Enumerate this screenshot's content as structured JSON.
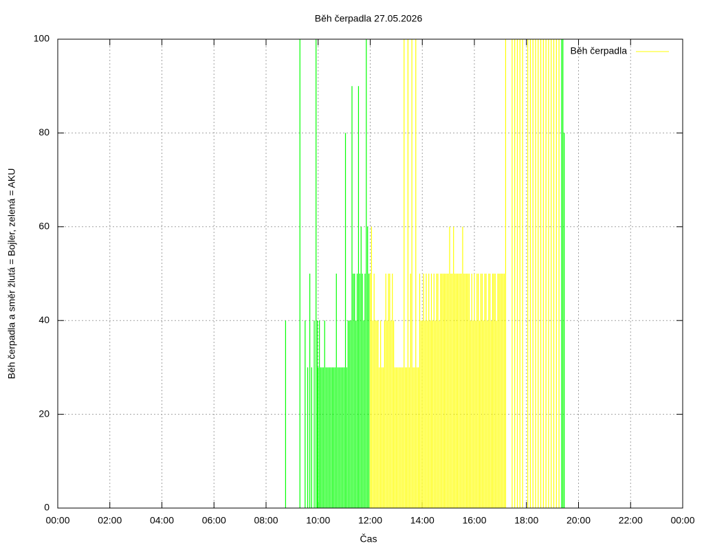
{
  "chart_data": {
    "type": "impulses",
    "title": "Běh čerpadla 27.05.2026",
    "x_label": "Čas",
    "y_label": "Běh čerpadla a směr žlutá = Bojler, zelená = AKU",
    "xlim": [
      0,
      24
    ],
    "xticks": [
      {
        "value": 0,
        "label": "00:00"
      },
      {
        "value": 2,
        "label": "02:00"
      },
      {
        "value": 4,
        "label": "04:00"
      },
      {
        "value": 6,
        "label": "06:00"
      },
      {
        "value": 8,
        "label": "08:00"
      },
      {
        "value": 10,
        "label": "10:00"
      },
      {
        "value": 12,
        "label": "12:00"
      },
      {
        "value": 14,
        "label": "14:00"
      },
      {
        "value": 16,
        "label": "16:00"
      },
      {
        "value": 18,
        "label": "18:00"
      },
      {
        "value": 20,
        "label": "20:00"
      },
      {
        "value": 22,
        "label": "22:00"
      },
      {
        "value": 24,
        "label": "00:00"
      }
    ],
    "ylim": [
      0,
      100
    ],
    "yticks": [
      0,
      20,
      40,
      60,
      80,
      100
    ],
    "grid": true,
    "legend": "top-right",
    "series": [
      {
        "color": "#00ff00",
        "x": [
          8.75,
          9.3,
          9.5,
          9.6,
          9.68,
          9.75,
          9.85,
          9.92,
          9.97,
          10.0,
          10.05,
          10.1,
          10.15,
          10.2,
          10.25,
          10.3,
          10.35,
          10.4,
          10.45,
          10.5,
          10.55,
          10.6,
          10.65,
          10.7,
          10.75,
          10.8,
          10.85,
          10.9,
          10.95,
          11.0,
          11.05,
          11.1,
          11.15,
          11.2,
          11.25,
          11.3,
          11.35,
          11.4,
          11.45,
          11.5,
          11.55,
          11.6,
          11.65,
          11.7,
          11.75,
          11.8,
          11.85,
          11.9,
          11.95,
          19.35,
          19.4,
          19.45
        ],
        "values": [
          40,
          100,
          40,
          30,
          50,
          30,
          40,
          100,
          40,
          30,
          40,
          30,
          30,
          30,
          40,
          30,
          30,
          30,
          30,
          30,
          30,
          30,
          30,
          50,
          30,
          30,
          30,
          30,
          30,
          30,
          80,
          30,
          40,
          40,
          40,
          90,
          50,
          50,
          40,
          50,
          90,
          50,
          60,
          50,
          40,
          50,
          100,
          60,
          50,
          100,
          100,
          80
        ]
      },
      {
        "name": "Běh čerpadla",
        "color": "#ffff00",
        "x": [
          12.0,
          12.05,
          12.1,
          12.15,
          12.2,
          12.25,
          12.3,
          12.35,
          12.4,
          12.45,
          12.5,
          12.55,
          12.6,
          12.65,
          12.7,
          12.75,
          12.8,
          12.85,
          12.9,
          12.95,
          13.0,
          13.05,
          13.1,
          13.15,
          13.2,
          13.25,
          13.3,
          13.35,
          13.4,
          13.45,
          13.5,
          13.55,
          13.6,
          13.65,
          13.7,
          13.75,
          13.8,
          13.85,
          13.9,
          13.95,
          14.0,
          14.05,
          14.1,
          14.15,
          14.2,
          14.25,
          14.3,
          14.35,
          14.4,
          14.45,
          14.5,
          14.55,
          14.6,
          14.65,
          14.7,
          14.75,
          14.8,
          14.85,
          14.9,
          14.95,
          15.0,
          15.05,
          15.1,
          15.15,
          15.2,
          15.25,
          15.3,
          15.35,
          15.4,
          15.45,
          15.5,
          15.55,
          15.6,
          15.65,
          15.7,
          15.75,
          15.8,
          15.85,
          15.9,
          15.95,
          16.0,
          16.05,
          16.1,
          16.15,
          16.2,
          16.25,
          16.3,
          16.35,
          16.4,
          16.45,
          16.5,
          16.55,
          16.6,
          16.65,
          16.7,
          16.75,
          16.8,
          16.85,
          16.9,
          16.95,
          17.0,
          17.05,
          17.1,
          17.15,
          17.2,
          17.45,
          17.55,
          17.65,
          17.75,
          17.85,
          18.05,
          18.15,
          18.25,
          18.35,
          18.45,
          18.55,
          18.65,
          18.75,
          18.85,
          18.95,
          19.05,
          19.15,
          19.25
        ],
        "values": [
          50,
          60,
          40,
          50,
          40,
          40,
          40,
          30,
          40,
          30,
          30,
          40,
          50,
          40,
          50,
          50,
          40,
          50,
          40,
          30,
          30,
          30,
          30,
          30,
          30,
          30,
          100,
          30,
          30,
          100,
          30,
          50,
          100,
          30,
          30,
          100,
          30,
          30,
          50,
          40,
          40,
          50,
          40,
          50,
          40,
          50,
          40,
          50,
          40,
          50,
          40,
          50,
          50,
          40,
          50,
          50,
          50,
          50,
          50,
          50,
          50,
          60,
          50,
          50,
          60,
          50,
          50,
          50,
          50,
          50,
          50,
          60,
          50,
          50,
          50,
          50,
          50,
          40,
          50,
          40,
          50,
          40,
          50,
          50,
          40,
          50,
          50,
          40,
          50,
          50,
          40,
          50,
          50,
          40,
          50,
          50,
          50,
          40,
          50,
          50,
          50,
          50,
          50,
          50,
          100,
          100,
          100,
          100,
          100,
          100,
          100,
          100,
          100,
          100,
          100,
          100,
          100,
          100,
          100,
          100,
          100,
          100,
          100
        ]
      }
    ]
  }
}
